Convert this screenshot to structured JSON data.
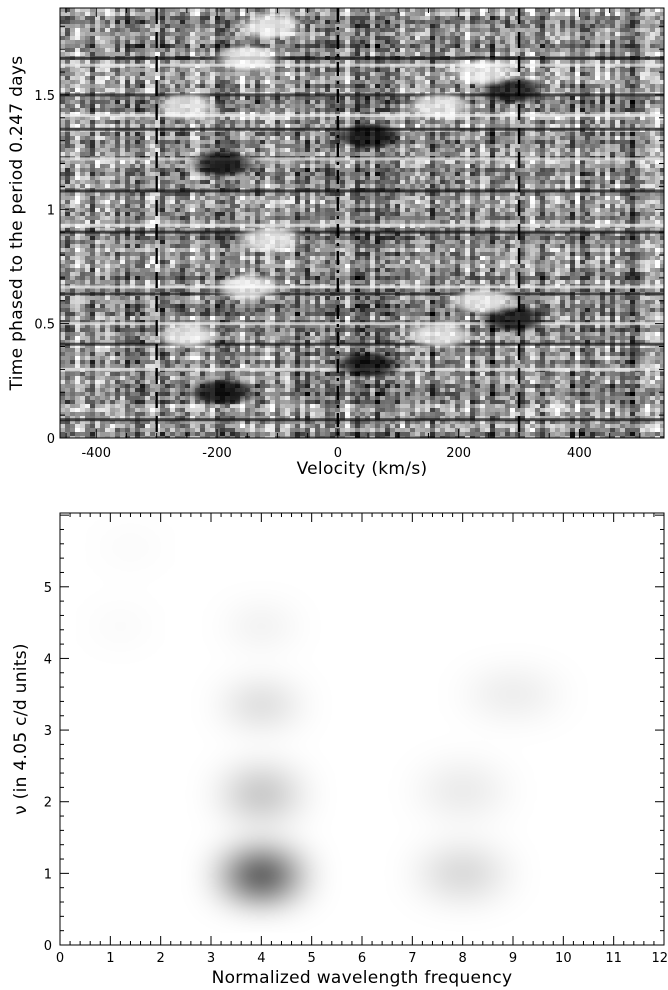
{
  "chart_data": [
    {
      "type": "heatmap",
      "title": "",
      "xlabel": "Velocity (km/s)",
      "ylabel": "Time phased to the period 0.247 days",
      "xlim": [
        -460,
        540
      ],
      "ylim": [
        0,
        1.88
      ],
      "x_ticks": [
        -400,
        -200,
        0,
        200,
        400
      ],
      "x_tick_labels": [
        "-400",
        "-200",
        "0",
        "200",
        "400"
      ],
      "y_ticks": [
        0,
        0.5,
        1,
        1.5
      ],
      "y_tick_labels": [
        "0",
        "0.5",
        "1",
        "1.5"
      ],
      "colormap": "grayscale",
      "reference_lines": [
        {
          "x": -300,
          "style": "dashed"
        },
        {
          "x": 0,
          "style": "dash-dot"
        },
        {
          "x": 300,
          "style": "dashed"
        }
      ],
      "features": [
        {
          "desc": "bright",
          "x": -250,
          "y": 0.45
        },
        {
          "desc": "bright",
          "x": -150,
          "y": 0.66
        },
        {
          "desc": "bright",
          "x": -110,
          "y": 0.87
        },
        {
          "desc": "dark",
          "x": -190,
          "y": 0.2
        },
        {
          "desc": "dark",
          "x": 50,
          "y": 0.32
        },
        {
          "desc": "bright",
          "x": 170,
          "y": 0.45
        },
        {
          "desc": "bright",
          "x": 240,
          "y": 0.6
        },
        {
          "desc": "dark",
          "x": 290,
          "y": 0.52
        },
        {
          "desc": "bright",
          "x": -250,
          "y": 1.45
        },
        {
          "desc": "bright",
          "x": -150,
          "y": 1.66
        },
        {
          "desc": "bright",
          "x": -110,
          "y": 1.8
        },
        {
          "desc": "dark",
          "x": -190,
          "y": 1.2
        },
        {
          "desc": "dark",
          "x": 50,
          "y": 1.32
        },
        {
          "desc": "bright",
          "x": 170,
          "y": 1.45
        },
        {
          "desc": "bright",
          "x": 240,
          "y": 1.6
        },
        {
          "desc": "dark",
          "x": 290,
          "y": 1.52
        }
      ]
    },
    {
      "type": "heatmap",
      "title": "",
      "xlabel": "Normalized wavelength frequency",
      "ylabel": "ν  (in  4.05 c/d units)",
      "xlim": [
        0,
        12
      ],
      "ylim": [
        0,
        6.03
      ],
      "x_ticks": [
        0,
        1,
        2,
        3,
        4,
        5,
        6,
        7,
        8,
        9,
        10,
        11,
        12
      ],
      "x_tick_labels": [
        "0",
        "1",
        "2",
        "3",
        "4",
        "5",
        "6",
        "7",
        "8",
        "9",
        "10",
        "11",
        "12"
      ],
      "y_ticks": [
        0,
        1,
        2,
        3,
        4,
        5
      ],
      "y_tick_labels": [
        "0",
        "1",
        "2",
        "3",
        "4",
        "5"
      ],
      "colormap": "grayscale-inverted",
      "peaks": [
        {
          "x": 4.0,
          "y": 0.97,
          "sx": 0.85,
          "sy": 0.38,
          "amp": 1.0
        },
        {
          "x": 8.0,
          "y": 1.0,
          "sx": 1.0,
          "sy": 0.42,
          "amp": 0.2
        },
        {
          "x": 4.0,
          "y": 2.1,
          "sx": 0.85,
          "sy": 0.45,
          "amp": 0.3
        },
        {
          "x": 8.0,
          "y": 2.15,
          "sx": 1.0,
          "sy": 0.45,
          "amp": 0.1
        },
        {
          "x": 4.0,
          "y": 3.35,
          "sx": 0.8,
          "sy": 0.3,
          "amp": 0.24
        },
        {
          "x": 9.0,
          "y": 3.5,
          "sx": 1.1,
          "sy": 0.35,
          "amp": 0.1
        },
        {
          "x": 4.0,
          "y": 4.45,
          "sx": 0.65,
          "sy": 0.25,
          "amp": 0.12
        },
        {
          "x": 1.2,
          "y": 4.45,
          "sx": 0.5,
          "sy": 0.25,
          "amp": 0.05
        },
        {
          "x": 1.4,
          "y": 5.55,
          "sx": 0.6,
          "sy": 0.25,
          "amp": 0.04
        }
      ]
    }
  ]
}
